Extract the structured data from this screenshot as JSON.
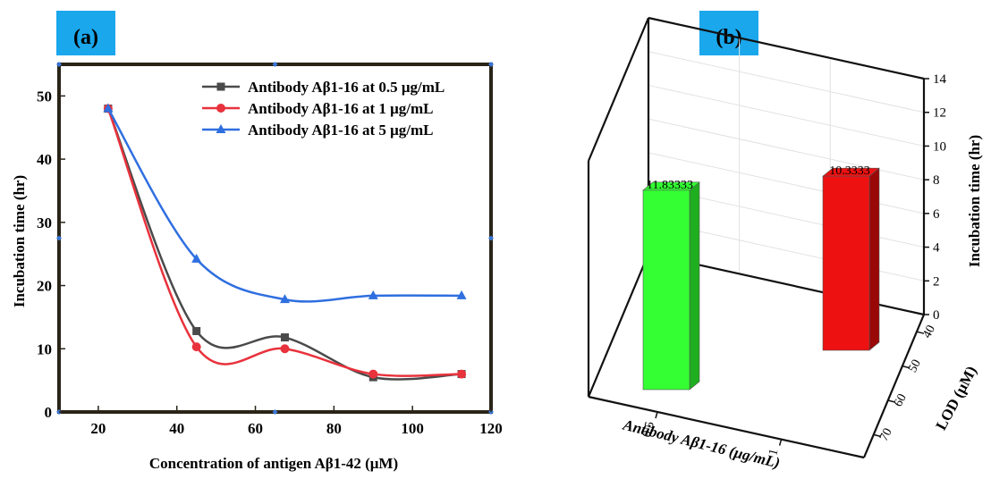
{
  "chart_data": [
    {
      "panel_label": "(a)",
      "type": "line",
      "xlabel": "Concentration of antigen Aβ1-42 (μM)",
      "ylabel": "Incubation time (hr)",
      "xlim": [
        10,
        120
      ],
      "ylim": [
        0,
        55
      ],
      "xticks": [
        20,
        40,
        60,
        80,
        100,
        120
      ],
      "yticks": [
        0,
        10,
        20,
        30,
        40,
        50
      ],
      "legend_position": "top-right",
      "grid": false,
      "x": [
        22.5,
        45,
        67.5,
        90,
        112.5
      ],
      "series": [
        {
          "name": "Antibody Aβ1-16 at 0.5 μg/mL",
          "marker": "square",
          "color": "#4a4a4a",
          "values": [
            48,
            12.8,
            11.8,
            5.5,
            6.0
          ]
        },
        {
          "name": "Antibody Aβ1-16 at 1 μg/mL",
          "marker": "circle",
          "color": "#e8323c",
          "values": [
            48,
            10.3,
            10.0,
            6.0,
            6.0
          ]
        },
        {
          "name": "Antibody Aβ1-16 at 5 μg/mL",
          "marker": "triangle",
          "color": "#2f6fe0",
          "values": [
            48,
            24.2,
            17.8,
            18.4,
            18.4
          ]
        }
      ]
    },
    {
      "panel_label": "(b)",
      "type": "bar",
      "style": "3d",
      "xlabel": "Antibody Aβ1-16 (μg/mL)",
      "ylabel": "LOD (μM)",
      "zlabel": "Incubation time (hr)",
      "categories": [
        "0.5",
        "1"
      ],
      "lod_ticks": [
        "40",
        "50",
        "60",
        "70"
      ],
      "zlim": [
        0,
        14
      ],
      "zticks": [
        0,
        2,
        4,
        6,
        8,
        10,
        12,
        14
      ],
      "bars": [
        {
          "category": "0.5",
          "value": 11.8333,
          "label": "11.83333",
          "color": "#33ff33",
          "side_color": "#1fae1f"
        },
        {
          "category": "1",
          "value": 10.3333,
          "label": "10.3333",
          "color": "#ee1111",
          "side_color": "#9a0707"
        }
      ]
    }
  ]
}
